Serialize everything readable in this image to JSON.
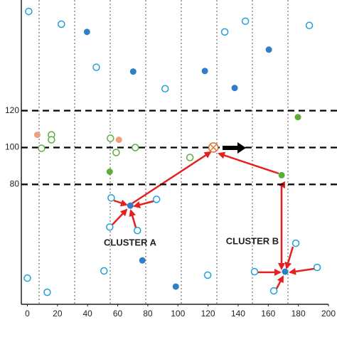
{
  "chart_data": {
    "type": "scatter",
    "xlim": [
      -4,
      200
    ],
    "ylim": [
      15,
      180
    ],
    "xticks": [
      0,
      20,
      40,
      60,
      80,
      100,
      120,
      140,
      160,
      180,
      200
    ],
    "yticks": [
      80,
      100,
      120
    ],
    "annotations": [
      "CLUSTER A",
      "CLUSTER B"
    ],
    "series": [
      {
        "color": "#1ea0d6",
        "marker": "open",
        "x": [
          0.9,
          22.6,
          45.8,
          91.5,
          131.1,
          144.8,
          187.3,
          55.7,
          85.8,
          54.7,
          73.1,
          178.3,
          150.9,
          163.7,
          192.5,
          0,
          13.2,
          50.9,
          119.8
        ],
        "values": [
          173.8,
          166.9,
          143.5,
          131.9,
          162.7,
          168.5,
          166.2,
          72.7,
          71.9,
          56.9,
          55,
          48.1,
          32.7,
          22.3,
          35,
          29.2,
          21.5,
          33.1,
          30.8
        ]
      },
      {
        "color": "#2f7ec6",
        "marker": "filled",
        "x": [
          39.6,
          70.3,
          117.9,
          160.4,
          137.7,
          68.4,
          171.2,
          76.4,
          98.6
        ],
        "values": [
          162.7,
          141.2,
          141.5,
          153.1,
          132.3,
          68.5,
          32.7,
          38.8,
          24.6
        ]
      },
      {
        "color": "#5cae3a",
        "marker": "open",
        "x": [
          16,
          16,
          9.4,
          55.2,
          59,
          71.7,
          108
        ],
        "values": [
          106.9,
          104.2,
          99.6,
          105,
          97.3,
          100,
          94.6
        ]
      },
      {
        "color": "#5cae3a",
        "marker": "filled",
        "x": [
          54.7,
          179.7,
          168.9
        ],
        "values": [
          86.9,
          116.5,
          85
        ]
      },
      {
        "color": "#f0a080",
        "marker": "filled",
        "x": [
          6.6,
          60.8
        ],
        "values": [
          106.9,
          104.2
        ]
      },
      {
        "color": "#e07030",
        "marker": "cross",
        "x": [
          123.6
        ],
        "values": [
          100
        ]
      }
    ]
  }
}
